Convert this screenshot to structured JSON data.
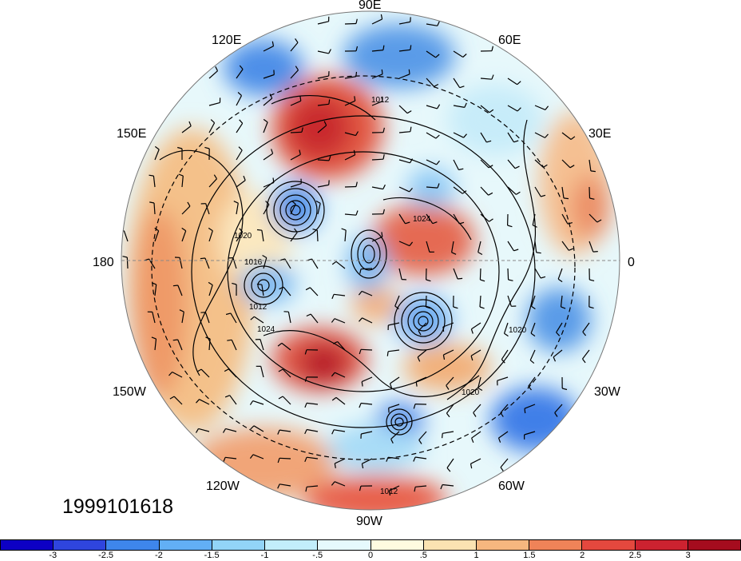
{
  "map": {
    "projection": "polar stereographic (north pole)",
    "timestamp": "1999101618",
    "longitude_labels": [
      {
        "id": "90E",
        "text": "90E"
      },
      {
        "id": "120E",
        "text": "120E"
      },
      {
        "id": "60E",
        "text": "60E"
      },
      {
        "id": "150E",
        "text": "150E"
      },
      {
        "id": "30E",
        "text": "30E"
      },
      {
        "id": "180",
        "text": "180"
      },
      {
        "id": "0",
        "text": "0"
      },
      {
        "id": "150W",
        "text": "150W"
      },
      {
        "id": "30W",
        "text": "30W"
      },
      {
        "id": "120W",
        "text": "120W"
      },
      {
        "id": "60W",
        "text": "60W"
      },
      {
        "id": "90W",
        "text": "90W"
      }
    ],
    "isobar_labels": [
      "1012",
      "1016",
      "1020",
      "1024"
    ],
    "field_colors": {
      "deep_blue": "#1a1ad0",
      "blue": "#3f7fe8",
      "light_blue": "#8ec9f5",
      "pale_blue": "#d4f3fb",
      "pale_yellow": "#fdf6cf",
      "tan": "#f6d8a4",
      "orange": "#f0a070",
      "red": "#e04a3a",
      "dark_red": "#b41f2b"
    }
  },
  "colorbar": {
    "ticks": [
      "-3",
      "-2.5",
      "-2",
      "-1.5",
      "-1",
      "-.5",
      "0",
      ".5",
      "1",
      "1.5",
      "2",
      "2.5",
      "3"
    ],
    "colors": [
      "#0d00c4",
      "#2f45de",
      "#3e86ec",
      "#62aff5",
      "#92d4f8",
      "#c2eefb",
      "#e6fafd",
      "#fffbe0",
      "#fbe3b2",
      "#f6b77f",
      "#ef8358",
      "#e4483e",
      "#cc2230",
      "#a50c1e"
    ]
  }
}
